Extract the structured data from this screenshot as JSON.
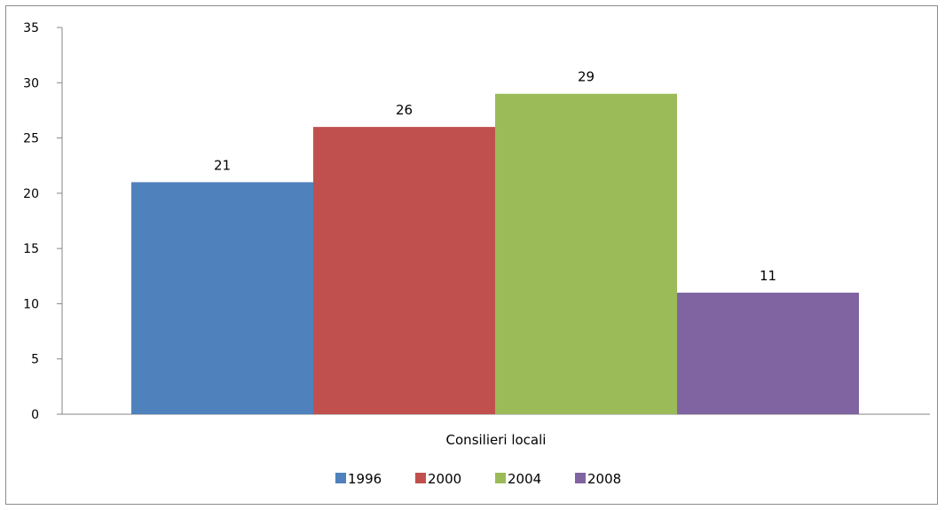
{
  "chart_data": {
    "type": "bar",
    "title": "",
    "xlabel": "",
    "ylabel": "",
    "categories": [
      "Consilieri locali"
    ],
    "series": [
      {
        "name": "1996",
        "values": [
          21
        ],
        "color": "#4F81BD"
      },
      {
        "name": "2000",
        "values": [
          26
        ],
        "color": "#C0504D"
      },
      {
        "name": "2004",
        "values": [
          29
        ],
        "color": "#9BBB59"
      },
      {
        "name": "2008",
        "values": [
          11
        ],
        "color": "#8064A2"
      }
    ],
    "ylim": [
      0,
      35
    ],
    "yticks": [
      "0",
      "5",
      "10",
      "15",
      "20",
      "25",
      "30",
      "35"
    ],
    "grid": false,
    "data_labels": [
      "21",
      "26",
      "29",
      "11"
    ],
    "legend": {
      "position": "bottom",
      "entries": [
        "1996",
        "2000",
        "2004",
        "2008"
      ]
    }
  }
}
